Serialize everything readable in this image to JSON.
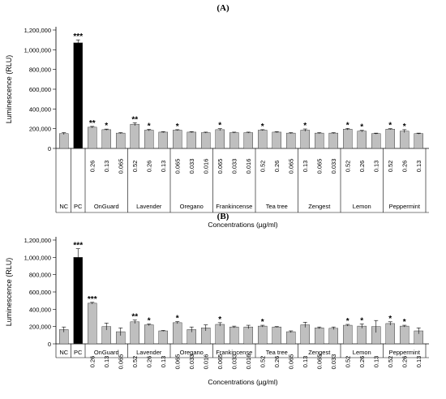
{
  "figure": {
    "fill_color": "#bfbfbf",
    "highlight_color": "#000000",
    "stroke_color": "#404040"
  },
  "chart_data": [
    {
      "type": "bar",
      "panel_label": "(A)",
      "ylabel": "Luminescence (RLU)",
      "xlabel": "Concentrations (µg/ml)",
      "ylim": [
        0,
        1200000
      ],
      "yticks": [
        "0",
        "200,000",
        "400,000",
        "600,000",
        "800,000",
        "1,000,000",
        "1,200,000"
      ],
      "grid": false,
      "bars": [
        {
          "conc": "",
          "value": 150000,
          "err": 10000,
          "sig": ""
        },
        {
          "conc": "",
          "value": 1070000,
          "err": 30000,
          "sig": "***"
        },
        {
          "conc": "0.26",
          "value": 215000,
          "err": 8000,
          "sig": "**"
        },
        {
          "conc": "0.13",
          "value": 190000,
          "err": 6000,
          "sig": "*"
        },
        {
          "conc": "0.065",
          "value": 155000,
          "err": 5000,
          "sig": ""
        },
        {
          "conc": "0.52",
          "value": 245000,
          "err": 15000,
          "sig": "**"
        },
        {
          "conc": "0.26",
          "value": 185000,
          "err": 8000,
          "sig": "*"
        },
        {
          "conc": "0.13",
          "value": 165000,
          "err": 5000,
          "sig": ""
        },
        {
          "conc": "0.065",
          "value": 185000,
          "err": 5000,
          "sig": "*"
        },
        {
          "conc": "0.033",
          "value": 165000,
          "err": 5000,
          "sig": ""
        },
        {
          "conc": "0.016",
          "value": 160000,
          "err": 5000,
          "sig": ""
        },
        {
          "conc": "0.065",
          "value": 190000,
          "err": 10000,
          "sig": "*"
        },
        {
          "conc": "0.033",
          "value": 160000,
          "err": 5000,
          "sig": ""
        },
        {
          "conc": "0.016",
          "value": 160000,
          "err": 5000,
          "sig": ""
        },
        {
          "conc": "0.52",
          "value": 185000,
          "err": 5000,
          "sig": "*"
        },
        {
          "conc": "0.26",
          "value": 165000,
          "err": 5000,
          "sig": ""
        },
        {
          "conc": "0.065",
          "value": 155000,
          "err": 5000,
          "sig": ""
        },
        {
          "conc": "0.13",
          "value": 185000,
          "err": 12000,
          "sig": "*"
        },
        {
          "conc": "0.065",
          "value": 155000,
          "err": 5000,
          "sig": ""
        },
        {
          "conc": "0.033",
          "value": 155000,
          "err": 5000,
          "sig": ""
        },
        {
          "conc": "0.52",
          "value": 195000,
          "err": 8000,
          "sig": "*"
        },
        {
          "conc": "0.26",
          "value": 175000,
          "err": 8000,
          "sig": "*"
        },
        {
          "conc": "0.13",
          "value": 150000,
          "err": 5000,
          "sig": ""
        },
        {
          "conc": "0.52",
          "value": 195000,
          "err": 5000,
          "sig": "*"
        },
        {
          "conc": "0.26",
          "value": 175000,
          "err": 15000,
          "sig": "*"
        },
        {
          "conc": "0.13",
          "value": 150000,
          "err": 5000,
          "sig": ""
        }
      ],
      "groups": [
        {
          "label": "NC",
          "start": 0,
          "count": 1
        },
        {
          "label": "PC",
          "start": 1,
          "count": 1
        },
        {
          "label": "OnGuard",
          "start": 2,
          "count": 3
        },
        {
          "label": "Lavender",
          "start": 5,
          "count": 3
        },
        {
          "label": "Oregano",
          "start": 8,
          "count": 3
        },
        {
          "label": "Frankincense",
          "start": 11,
          "count": 3
        },
        {
          "label": "Tea tree",
          "start": 14,
          "count": 3
        },
        {
          "label": "Zengest",
          "start": 17,
          "count": 3
        },
        {
          "label": "Lemon",
          "start": 20,
          "count": 3
        },
        {
          "label": "Peppermint",
          "start": 23,
          "count": 3
        }
      ]
    },
    {
      "type": "bar",
      "panel_label": "(B)",
      "ylabel": "Luminescence (RLU)",
      "xlabel": "Concentrations (µg/ml)",
      "ylim": [
        0,
        1200000
      ],
      "yticks": [
        "0",
        "200,000",
        "400,000",
        "600,000",
        "800,000",
        "1,000,000",
        "1,200,000"
      ],
      "grid": false,
      "bars": [
        {
          "conc": "",
          "value": 165000,
          "err": 30000,
          "sig": ""
        },
        {
          "conc": "",
          "value": 1000000,
          "err": 100000,
          "sig": "***"
        },
        {
          "conc": "0.26",
          "value": 470000,
          "err": 10000,
          "sig": "***"
        },
        {
          "conc": "0.13",
          "value": 200000,
          "err": 40000,
          "sig": ""
        },
        {
          "conc": "0.065",
          "value": 140000,
          "err": 45000,
          "sig": ""
        },
        {
          "conc": "0.52",
          "value": 255000,
          "err": 20000,
          "sig": "**"
        },
        {
          "conc": "0.26",
          "value": 220000,
          "err": 10000,
          "sig": "*"
        },
        {
          "conc": "0.13",
          "value": 150000,
          "err": 5000,
          "sig": ""
        },
        {
          "conc": "0.065",
          "value": 245000,
          "err": 12000,
          "sig": "*"
        },
        {
          "conc": "0.033",
          "value": 165000,
          "err": 30000,
          "sig": ""
        },
        {
          "conc": "0.016",
          "value": 185000,
          "err": 35000,
          "sig": ""
        },
        {
          "conc": "0.065",
          "value": 225000,
          "err": 20000,
          "sig": "*"
        },
        {
          "conc": "0.033",
          "value": 195000,
          "err": 10000,
          "sig": ""
        },
        {
          "conc": "0.016",
          "value": 195000,
          "err": 20000,
          "sig": ""
        },
        {
          "conc": "0.52",
          "value": 205000,
          "err": 10000,
          "sig": "*"
        },
        {
          "conc": "0.26",
          "value": 195000,
          "err": 5000,
          "sig": ""
        },
        {
          "conc": "0.065",
          "value": 140000,
          "err": 10000,
          "sig": ""
        },
        {
          "conc": "0.13",
          "value": 220000,
          "err": 30000,
          "sig": ""
        },
        {
          "conc": "0.065",
          "value": 185000,
          "err": 10000,
          "sig": ""
        },
        {
          "conc": "0.033",
          "value": 180000,
          "err": 15000,
          "sig": ""
        },
        {
          "conc": "0.52",
          "value": 215000,
          "err": 10000,
          "sig": "*"
        },
        {
          "conc": "0.26",
          "value": 205000,
          "err": 25000,
          "sig": "*"
        },
        {
          "conc": "0.13",
          "value": 200000,
          "err": 70000,
          "sig": ""
        },
        {
          "conc": "0.52",
          "value": 235000,
          "err": 20000,
          "sig": "*"
        },
        {
          "conc": "0.26",
          "value": 205000,
          "err": 10000,
          "sig": "*"
        },
        {
          "conc": "0.13",
          "value": 150000,
          "err": 35000,
          "sig": ""
        }
      ],
      "groups": [
        {
          "label": "NC",
          "start": 0,
          "count": 1
        },
        {
          "label": "PC",
          "start": 1,
          "count": 1
        },
        {
          "label": "OnGuard",
          "start": 2,
          "count": 3
        },
        {
          "label": "Lavender",
          "start": 5,
          "count": 3
        },
        {
          "label": "Oregano",
          "start": 8,
          "count": 3
        },
        {
          "label": "Frankincense",
          "start": 11,
          "count": 3
        },
        {
          "label": "Tea tree",
          "start": 14,
          "count": 3
        },
        {
          "label": "Zengest",
          "start": 17,
          "count": 3
        },
        {
          "label": "Lemon",
          "start": 20,
          "count": 3
        },
        {
          "label": "Peppermint",
          "start": 23,
          "count": 3
        }
      ]
    }
  ]
}
